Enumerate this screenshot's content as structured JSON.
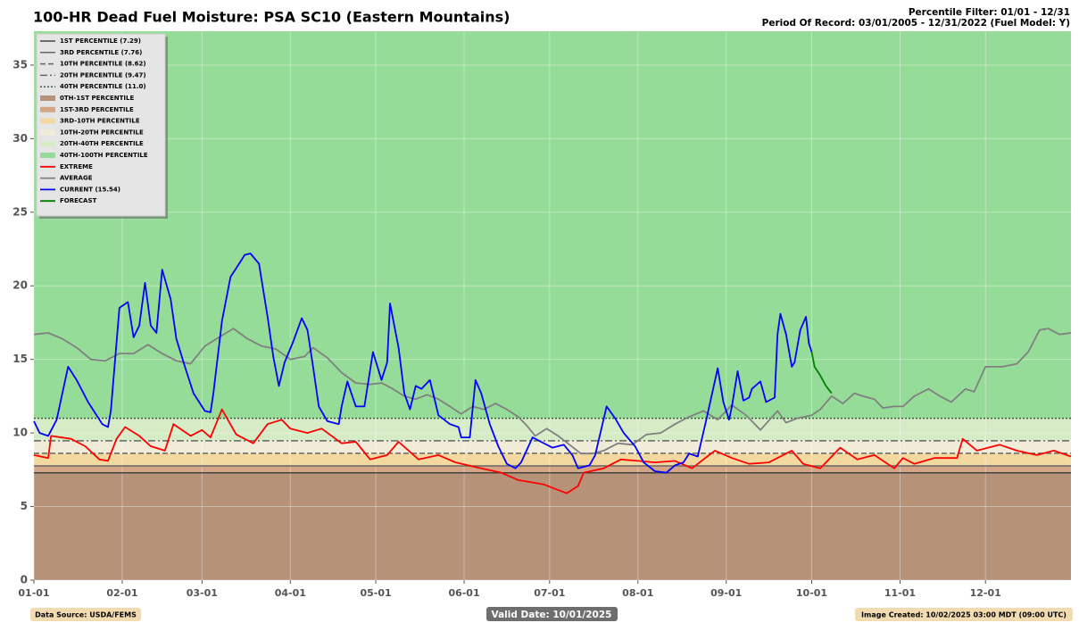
{
  "chart_data": {
    "type": "line",
    "title": "100-HR Dead Fuel Moisture: PSA SC10 (Eastern Mountains)",
    "subtitle_lines": [
      "Percentile Filter: 01/01 - 12/31",
      "Period Of Record: 03/01/2005 - 12/31/2022 (Fuel Model: Y)"
    ],
    "footer_left": "Data Source: USDA/FEMS",
    "footer_center": "Valid Date: 10/01/2025",
    "footer_right": "Image Created: 10/02/2025 03:00 MDT (09:00 UTC)",
    "xlim": [
      0,
      364
    ],
    "xticks": [
      {
        "value": 0,
        "label": "01-01"
      },
      {
        "value": 31,
        "label": "02-01"
      },
      {
        "value": 59,
        "label": "03-01"
      },
      {
        "value": 90,
        "label": "04-01"
      },
      {
        "value": 120,
        "label": "05-01"
      },
      {
        "value": 151,
        "label": "06-01"
      },
      {
        "value": 181,
        "label": "07-01"
      },
      {
        "value": 212,
        "label": "08-01"
      },
      {
        "value": 243,
        "label": "09-01"
      },
      {
        "value": 273,
        "label": "10-01"
      },
      {
        "value": 304,
        "label": "11-01"
      },
      {
        "value": 334,
        "label": "12-01"
      }
    ],
    "ylim": [
      0,
      37.3
    ],
    "yticks": [
      0,
      5,
      10,
      15,
      20,
      25,
      30,
      35
    ],
    "grid": true,
    "legend_position": "upper-left",
    "percentile_lines": [
      {
        "name": "1ST PERCENTILE (7.29)",
        "value": 7.29,
        "color": "#444444",
        "dash": "solid"
      },
      {
        "name": "3RD PERCENTILE (7.76)",
        "value": 7.76,
        "color": "#666666",
        "dash": "solid"
      },
      {
        "name": "10TH PERCENTILE (8.62)",
        "value": 8.62,
        "color": "#666666",
        "dash": "dashed"
      },
      {
        "name": "20TH PERCENTILE (9.47)",
        "value": 9.47,
        "color": "#666666",
        "dash": "dashdot"
      },
      {
        "name": "40TH PERCENTILE (11.0)",
        "value": 11.0,
        "color": "#3a5a40",
        "dash": "dotted"
      }
    ],
    "bands": [
      {
        "name": "0TH-1ST PERCENTILE",
        "color": "#b69279"
      },
      {
        "name": "1ST-3RD PERCENTILE",
        "color": "#d4a585"
      },
      {
        "name": "3RD-10TH PERCENTILE",
        "color": "#f3d9a0"
      },
      {
        "name": "10TH-20TH PERCENTILE",
        "color": "#f1ecd8"
      },
      {
        "name": "20TH-40TH PERCENTILE",
        "color": "#d5ecc6"
      },
      {
        "name": "40TH-100TH PERCENTILE",
        "color": "#96dc99"
      }
    ],
    "series": [
      {
        "name": "EXTREME",
        "color": "#ff0000",
        "x": [
          0,
          5,
          6,
          13,
          18,
          23,
          26,
          29,
          32,
          37,
          41,
          46,
          49,
          55,
          59,
          62,
          66,
          71,
          77,
          82,
          87,
          90,
          96,
          101,
          108,
          113,
          118,
          124,
          128,
          135,
          142,
          148,
          157,
          164,
          170,
          179,
          187,
          191,
          193,
          200,
          206,
          212,
          218,
          225,
          231,
          239,
          245,
          251,
          258,
          266,
          270,
          276,
          283,
          289,
          295,
          302,
          305,
          309,
          316,
          324,
          326,
          331,
          339,
          345,
          352,
          358,
          364
        ],
        "values": [
          8.5,
          8.3,
          9.8,
          9.6,
          9.1,
          8.2,
          8.1,
          9.6,
          10.4,
          9.8,
          9.1,
          8.8,
          10.6,
          9.8,
          10.2,
          9.7,
          11.6,
          9.9,
          9.3,
          10.6,
          10.9,
          10.3,
          10.0,
          10.3,
          9.3,
          9.4,
          8.2,
          8.5,
          9.4,
          8.2,
          8.5,
          8.0,
          7.6,
          7.3,
          6.8,
          6.5,
          5.9,
          6.4,
          7.3,
          7.6,
          8.2,
          8.1,
          8.0,
          8.1,
          7.6,
          8.8,
          8.3,
          7.9,
          8.0,
          8.8,
          7.9,
          7.6,
          9.0,
          8.2,
          8.5,
          7.6,
          8.3,
          7.9,
          8.3,
          8.3,
          9.6,
          8.8,
          9.2,
          8.8,
          8.5,
          8.8,
          8.4
        ]
      },
      {
        "name": "AVERAGE",
        "color": "#808080",
        "x": [
          0,
          5,
          10,
          15,
          20,
          25,
          30,
          35,
          40,
          45,
          50,
          55,
          60,
          65,
          70,
          75,
          80,
          85,
          90,
          95,
          98,
          103,
          108,
          113,
          118,
          122,
          126,
          130,
          134,
          138,
          142,
          146,
          150,
          154,
          158,
          162,
          166,
          170,
          173,
          176,
          180,
          184,
          188,
          192,
          196,
          200,
          205,
          210,
          215,
          220,
          225,
          230,
          235,
          240,
          245,
          250,
          255,
          261,
          264,
          268,
          273,
          276,
          280,
          284,
          288,
          291,
          295,
          298,
          302,
          305,
          309,
          314,
          318,
          322,
          327,
          330,
          334,
          340,
          345,
          349,
          353,
          356,
          360,
          364
        ],
        "values": [
          16.7,
          16.8,
          16.4,
          15.8,
          15.0,
          14.9,
          15.4,
          15.4,
          16.0,
          15.4,
          14.9,
          14.7,
          15.9,
          16.5,
          17.1,
          16.4,
          15.9,
          15.7,
          15.0,
          15.2,
          15.8,
          15.1,
          14.1,
          13.4,
          13.3,
          13.4,
          13.0,
          12.5,
          12.3,
          12.6,
          12.3,
          11.8,
          11.3,
          11.8,
          11.6,
          12.0,
          11.6,
          11.1,
          10.5,
          9.8,
          10.3,
          9.8,
          9.2,
          8.6,
          8.6,
          8.8,
          9.3,
          9.2,
          9.9,
          10.0,
          10.6,
          11.1,
          11.5,
          10.9,
          11.9,
          11.2,
          10.2,
          11.5,
          10.7,
          11.0,
          11.2,
          11.6,
          12.5,
          12.0,
          12.7,
          12.5,
          12.3,
          11.7,
          11.8,
          11.8,
          12.5,
          13.0,
          12.5,
          12.1,
          13.0,
          12.8,
          14.5,
          14.5,
          14.7,
          15.5,
          17.0,
          17.1,
          16.7,
          16.8
        ]
      },
      {
        "name": "CURRENT (15.54)",
        "color": "#0000ff",
        "x": [
          0,
          2,
          5,
          8,
          10,
          12,
          15,
          19,
          24,
          26,
          27,
          30,
          33,
          35,
          37,
          39,
          41,
          43,
          45,
          48,
          50,
          53,
          56,
          60,
          62,
          63,
          66,
          69,
          71,
          74,
          76,
          79,
          82,
          84,
          86,
          88,
          91,
          94,
          96,
          98,
          100,
          103,
          107,
          108,
          110,
          113,
          116,
          119,
          122,
          124,
          125,
          128,
          130,
          132,
          134,
          136,
          139,
          142,
          146,
          149,
          150,
          153,
          155,
          157,
          160,
          163,
          166,
          169,
          171,
          175,
          178,
          182,
          186,
          189,
          191,
          195,
          197,
          201,
          204,
          207,
          211,
          214,
          218,
          222,
          225,
          228,
          230,
          233,
          236,
          240,
          242,
          244,
          245,
          247,
          249,
          251,
          252,
          255,
          257,
          260,
          261,
          262,
          264,
          266,
          267,
          269,
          271,
          272,
          273
        ],
        "values": [
          10.8,
          10.0,
          9.8,
          10.9,
          12.7,
          14.5,
          13.6,
          12.1,
          10.6,
          10.4,
          11.5,
          18.5,
          18.9,
          16.5,
          17.3,
          20.2,
          17.3,
          16.8,
          21.1,
          19.1,
          16.4,
          14.5,
          12.7,
          11.5,
          11.4,
          12.7,
          17.6,
          20.6,
          21.2,
          22.1,
          22.2,
          21.5,
          17.9,
          15.2,
          13.2,
          14.8,
          16.2,
          17.8,
          17.0,
          14.5,
          11.8,
          10.8,
          10.6,
          11.8,
          13.5,
          11.8,
          11.8,
          15.5,
          13.6,
          14.8,
          18.8,
          15.8,
          12.7,
          11.6,
          13.2,
          13.0,
          13.6,
          11.2,
          10.6,
          10.4,
          9.7,
          9.7,
          13.6,
          12.7,
          10.6,
          9.1,
          7.9,
          7.6,
          8.0,
          9.7,
          9.4,
          9.0,
          9.2,
          8.5,
          7.6,
          7.8,
          8.5,
          11.8,
          11.0,
          10.0,
          9.1,
          8.0,
          7.4,
          7.3,
          7.8,
          8.0,
          8.6,
          8.4,
          10.9,
          14.4,
          12.1,
          10.9,
          11.8,
          14.2,
          12.2,
          12.4,
          13.0,
          13.5,
          12.1,
          12.4,
          16.7,
          18.1,
          16.7,
          14.5,
          14.8,
          17.0,
          17.9,
          16.1,
          15.5
        ]
      },
      {
        "name": "FORECAST",
        "color": "#008000",
        "x": [
          273,
          274,
          276,
          278,
          280
        ],
        "values": [
          15.5,
          14.5,
          13.9,
          13.2,
          12.7
        ]
      }
    ]
  }
}
